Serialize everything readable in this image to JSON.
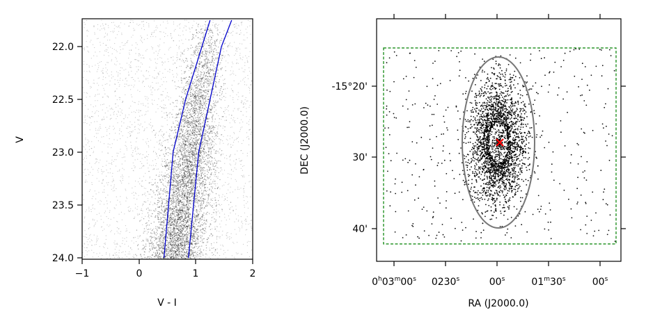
{
  "chart_data": [
    {
      "type": "scatter",
      "xlabel": "V - I",
      "ylabel": "V",
      "xlim": [
        -1,
        2
      ],
      "ylim": [
        24.0,
        21.75
      ],
      "y_inverted": true,
      "grid": false,
      "xticks": [
        -1,
        0,
        1,
        2
      ],
      "xtick_labels": [
        "−1",
        "0",
        "1",
        "2"
      ],
      "yticks": [
        22.0,
        22.5,
        23.0,
        23.5,
        24.0
      ],
      "ytick_labels": [
        "22.0",
        "22.5",
        "23.0",
        "23.5",
        "24.0"
      ],
      "points_color": "#000000",
      "series": [
        {
          "type": "line",
          "color": "#0000cc",
          "x": [
            0.44,
            0.6,
            0.82,
            1.05,
            1.25
          ],
          "y": [
            24.0,
            23.0,
            22.5,
            22.1,
            21.75
          ]
        },
        {
          "type": "line",
          "color": "#0000cc",
          "x": [
            0.87,
            1.05,
            1.25,
            1.45,
            1.63
          ],
          "y": [
            24.0,
            23.0,
            22.5,
            22.0,
            21.75
          ]
        }
      ]
    },
    {
      "type": "scatter",
      "xlabel": "RA (J2000.0)",
      "ylabel": "DEC (J2000.0)",
      "grid": false,
      "xlim_sec_offset": [
        -15,
        180
      ],
      "ylim_arcmin": [
        -15.765,
        -15.22
      ],
      "xtick_labels": [
        {
          "h": "0",
          "hs": "h",
          "m": "03",
          "ms": "m",
          "s": "00",
          "ss": "s"
        },
        {
          "h": "",
          "hs": "",
          "m": "02",
          "ms": "",
          "s": "30",
          "ss": "s"
        },
        {
          "h": "",
          "hs": "",
          "m": "",
          "ms": "",
          "s": "00",
          "ss": "s"
        },
        {
          "h": "",
          "hs": "",
          "m": "01",
          "ms": "m",
          "s": "30",
          "ss": "s"
        },
        {
          "h": "",
          "hs": "",
          "m": "",
          "ms": "",
          "s": "00",
          "ss": "s"
        }
      ],
      "ytick_labels": [
        "-15°20'",
        "30'",
        "40'"
      ],
      "center_marker": {
        "symbol": "x",
        "color": "#ff0000"
      },
      "ellipse_color": "#777777",
      "box_color": "#008000",
      "points_color": "#000000"
    }
  ]
}
